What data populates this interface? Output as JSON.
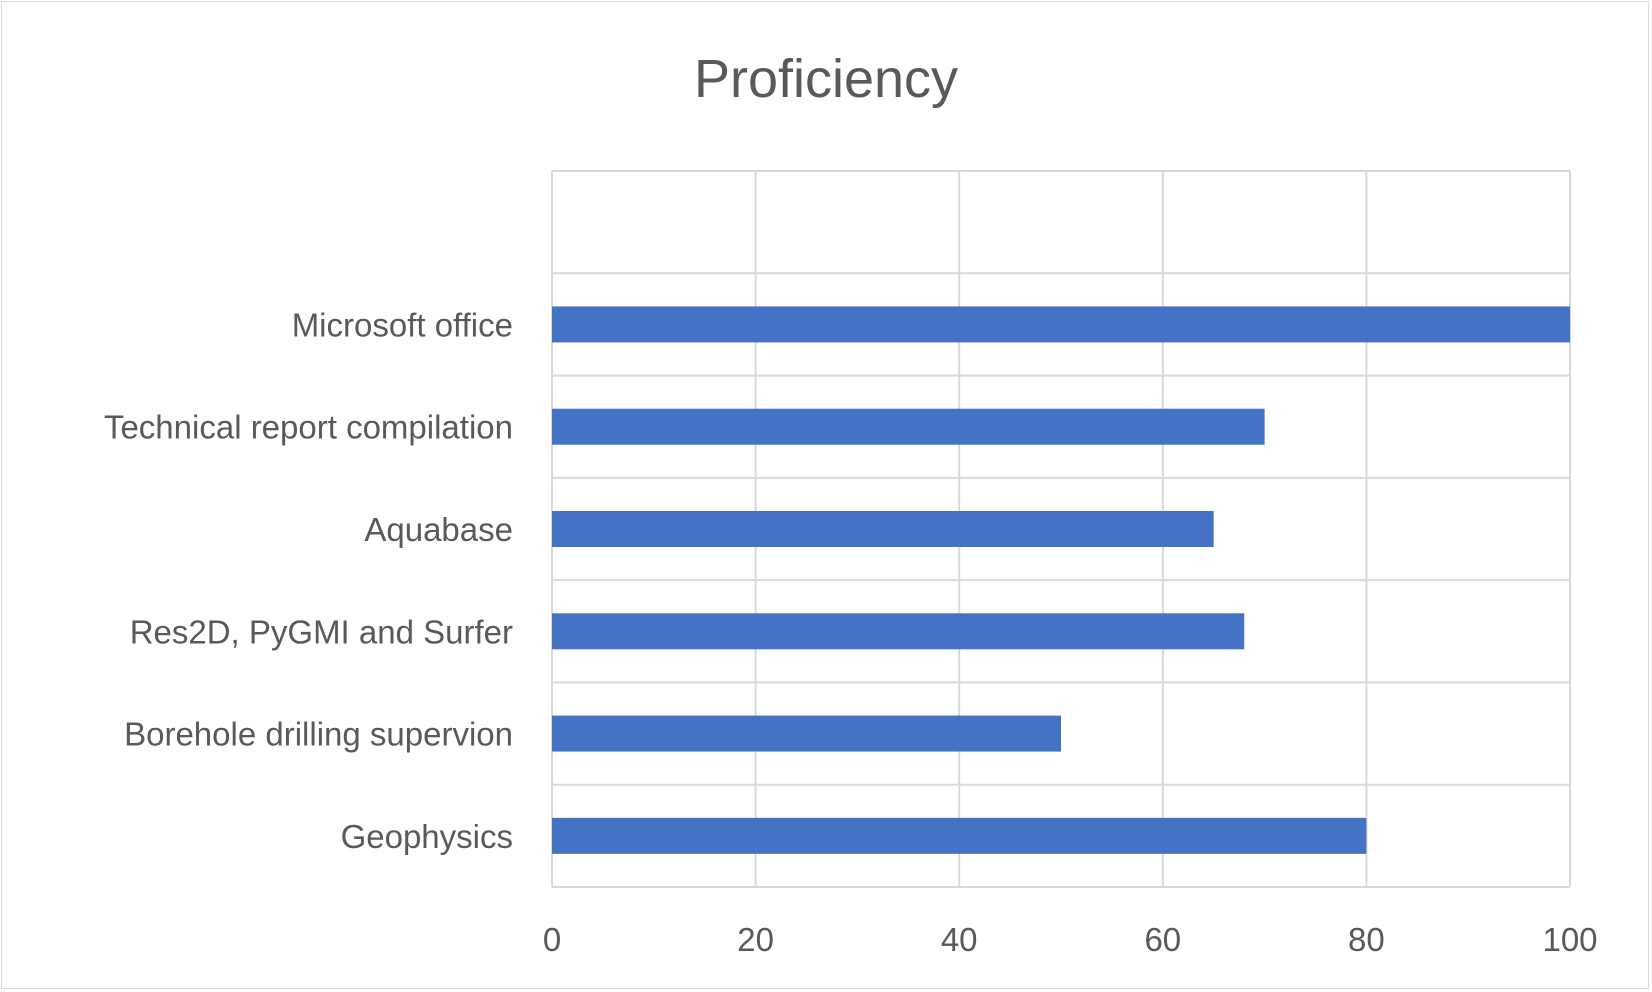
{
  "chart_data": {
    "type": "bar",
    "orientation": "horizontal",
    "title": "Proficiency",
    "xlabel": "",
    "ylabel": "",
    "categories": [
      "Geophysics",
      "Borehole drilling supervion",
      "Res2D, PyGMI and Surfer",
      "Aquabase",
      "Technical report compilation",
      "Microsoft office"
    ],
    "values": [
      80,
      50,
      68,
      65,
      70,
      100
    ],
    "xlim": [
      0,
      100
    ],
    "xticks": [
      "0",
      "20",
      "40",
      "60",
      "80",
      "100"
    ],
    "grid": true,
    "legend": "none",
    "bar_color": "#4472C4",
    "grid_color": "#d9d9d9",
    "text_color": "#595959"
  }
}
